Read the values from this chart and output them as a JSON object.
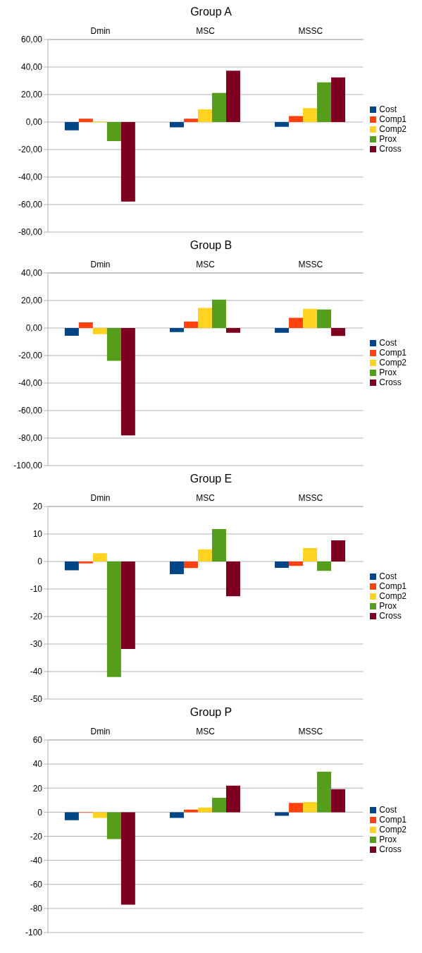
{
  "chart_data": [
    {
      "type": "bar",
      "title": "Group A",
      "categories": [
        "Dmin",
        "MSC",
        "MSSC"
      ],
      "series": [
        {
          "name": "Cost",
          "color": "#004586",
          "values": [
            -6.0,
            -3.9,
            -3.4
          ]
        },
        {
          "name": "Comp1",
          "color": "#ff420e",
          "values": [
            2.4,
            2.4,
            4.3
          ]
        },
        {
          "name": "Comp2",
          "color": "#ffd320",
          "values": [
            0.5,
            9.2,
            10.1
          ]
        },
        {
          "name": "Prox",
          "color": "#579d1c",
          "values": [
            -13.9,
            21.2,
            28.9
          ]
        },
        {
          "name": "Cross",
          "color": "#7e0021",
          "values": [
            -57.8,
            37.3,
            32.5
          ]
        }
      ],
      "ylim": [
        -80,
        60
      ],
      "yticks": [
        {
          "value": -80,
          "label": "-80,00"
        },
        {
          "value": -60,
          "label": "-60,00"
        },
        {
          "value": -40,
          "label": "-40,00"
        },
        {
          "value": -20,
          "label": "-20,00"
        },
        {
          "value": 0,
          "label": "0,00"
        },
        {
          "value": 20,
          "label": "20,00"
        },
        {
          "value": 40,
          "label": "40,00"
        },
        {
          "value": 60,
          "label": "60,00"
        }
      ],
      "grid": "y",
      "legend": "right"
    },
    {
      "type": "bar",
      "title": "Group B",
      "categories": [
        "Dmin",
        "MSC",
        "MSSC"
      ],
      "series": [
        {
          "name": "Cost",
          "color": "#004586",
          "values": [
            -5.6,
            -3.0,
            -3.4
          ]
        },
        {
          "name": "Comp1",
          "color": "#ff420e",
          "values": [
            4.1,
            4.7,
            7.5
          ]
        },
        {
          "name": "Comp2",
          "color": "#ffd320",
          "values": [
            -4.5,
            14.6,
            14.0
          ]
        },
        {
          "name": "Prox",
          "color": "#579d1c",
          "values": [
            -23.9,
            20.6,
            13.5
          ]
        },
        {
          "name": "Cross",
          "color": "#7e0021",
          "values": [
            -78.1,
            -3.4,
            -5.8
          ]
        }
      ],
      "ylim": [
        -100,
        40
      ],
      "yticks": [
        {
          "value": -100,
          "label": "-100,00"
        },
        {
          "value": -80,
          "label": "-80,00"
        },
        {
          "value": -60,
          "label": "-60,00"
        },
        {
          "value": -40,
          "label": "-40,00"
        },
        {
          "value": -20,
          "label": "-20,00"
        },
        {
          "value": 0,
          "label": "0,00"
        },
        {
          "value": 20,
          "label": "20,00"
        },
        {
          "value": 40,
          "label": "40,00"
        }
      ],
      "grid": "y",
      "legend": "right"
    },
    {
      "type": "bar",
      "title": "Group E",
      "categories": [
        "Dmin",
        "MSC",
        "MSSC"
      ],
      "series": [
        {
          "name": "Cost",
          "color": "#004586",
          "values": [
            -3.2,
            -4.6,
            -2.3
          ]
        },
        {
          "name": "Comp1",
          "color": "#ff420e",
          "values": [
            -0.7,
            -2.4,
            -1.6
          ]
        },
        {
          "name": "Comp2",
          "color": "#ffd320",
          "values": [
            3.0,
            4.4,
            4.9
          ]
        },
        {
          "name": "Prox",
          "color": "#579d1c",
          "values": [
            -42.0,
            11.8,
            -3.4
          ]
        },
        {
          "name": "Cross",
          "color": "#7e0021",
          "values": [
            -31.8,
            -12.6,
            7.7
          ]
        }
      ],
      "ylim": [
        -50,
        20
      ],
      "yticks": [
        -50,
        -40,
        -30,
        -20,
        -10,
        0,
        10,
        20
      ],
      "grid": "y",
      "legend": "right"
    },
    {
      "type": "bar",
      "title": "Group P",
      "categories": [
        "Dmin",
        "MSC",
        "MSSC"
      ],
      "series": [
        {
          "name": "Cost",
          "color": "#004586",
          "values": [
            -6.6,
            -4.7,
            -3.0
          ]
        },
        {
          "name": "Comp1",
          "color": "#ff420e",
          "values": [
            -0.5,
            2.1,
            7.7
          ]
        },
        {
          "name": "Comp2",
          "color": "#ffd320",
          "values": [
            -4.7,
            3.9,
            8.4
          ]
        },
        {
          "name": "Prox",
          "color": "#579d1c",
          "values": [
            -22.3,
            12.0,
            33.6
          ]
        },
        {
          "name": "Cross",
          "color": "#7e0021",
          "values": [
            -76.9,
            22.1,
            19.1
          ]
        }
      ],
      "ylim": [
        -100,
        60
      ],
      "yticks": [
        -100,
        -80,
        -60,
        -40,
        -20,
        0,
        20,
        40,
        60
      ],
      "grid": "y",
      "legend": "right"
    }
  ]
}
